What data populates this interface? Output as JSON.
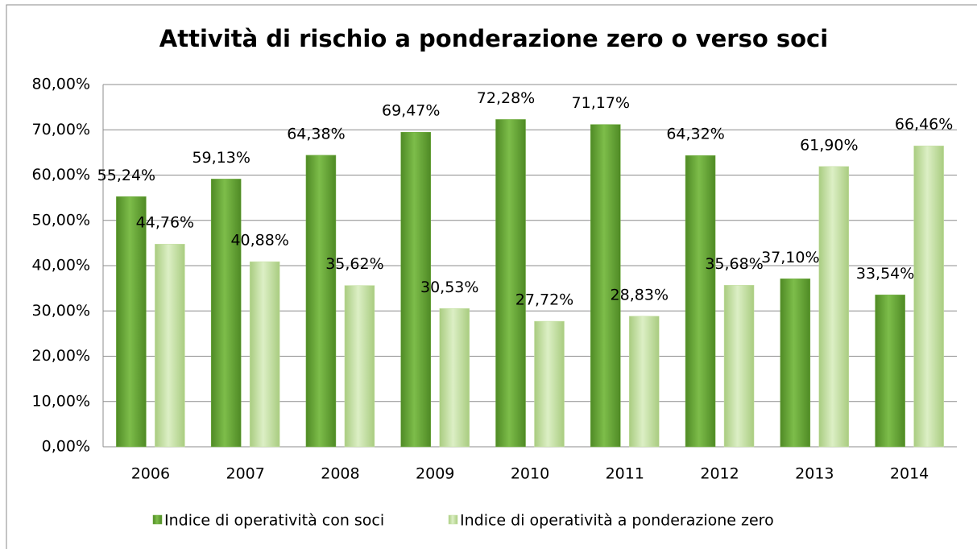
{
  "chart_data": {
    "type": "bar",
    "title": "Attività di rischio a ponderazione zero o verso soci",
    "categories": [
      "2006",
      "2007",
      "2008",
      "2009",
      "2010",
      "2011",
      "2012",
      "2013",
      "2014"
    ],
    "series": [
      {
        "name": "Indice di operatività con soci",
        "color": "#6fac3f",
        "values": [
          55.24,
          59.13,
          64.38,
          69.47,
          72.28,
          71.17,
          64.32,
          37.1,
          33.54
        ],
        "value_labels": [
          "55,24%",
          "59,13%",
          "64,38%",
          "69,47%",
          "72,28%",
          "71,17%",
          "64,32%",
          "37,10%",
          "33,54%"
        ]
      },
      {
        "name": "Indice di operatività a ponderazione zero",
        "color": "#c5e0a3",
        "values": [
          44.76,
          40.88,
          35.62,
          30.53,
          27.72,
          28.83,
          35.68,
          61.9,
          66.46
        ],
        "value_labels": [
          "44,76%",
          "40,88%",
          "35,62%",
          "30,53%",
          "27,72%",
          "28,83%",
          "35,68%",
          "61,90%",
          "66,46%"
        ]
      }
    ],
    "ylim": [
      0,
      80
    ],
    "yticks": [
      {
        "value": 0,
        "label": "0,00%"
      },
      {
        "value": 10,
        "label": "10,00%"
      },
      {
        "value": 20,
        "label": "20,00%"
      },
      {
        "value": 30,
        "label": "30,00%"
      },
      {
        "value": 40,
        "label": "40,00%"
      },
      {
        "value": 50,
        "label": "50,00%"
      },
      {
        "value": 60,
        "label": "60,00%"
      },
      {
        "value": 70,
        "label": "70,00%"
      },
      {
        "value": 80,
        "label": "80,00%"
      }
    ],
    "grid": true,
    "legend": "bottom"
  }
}
